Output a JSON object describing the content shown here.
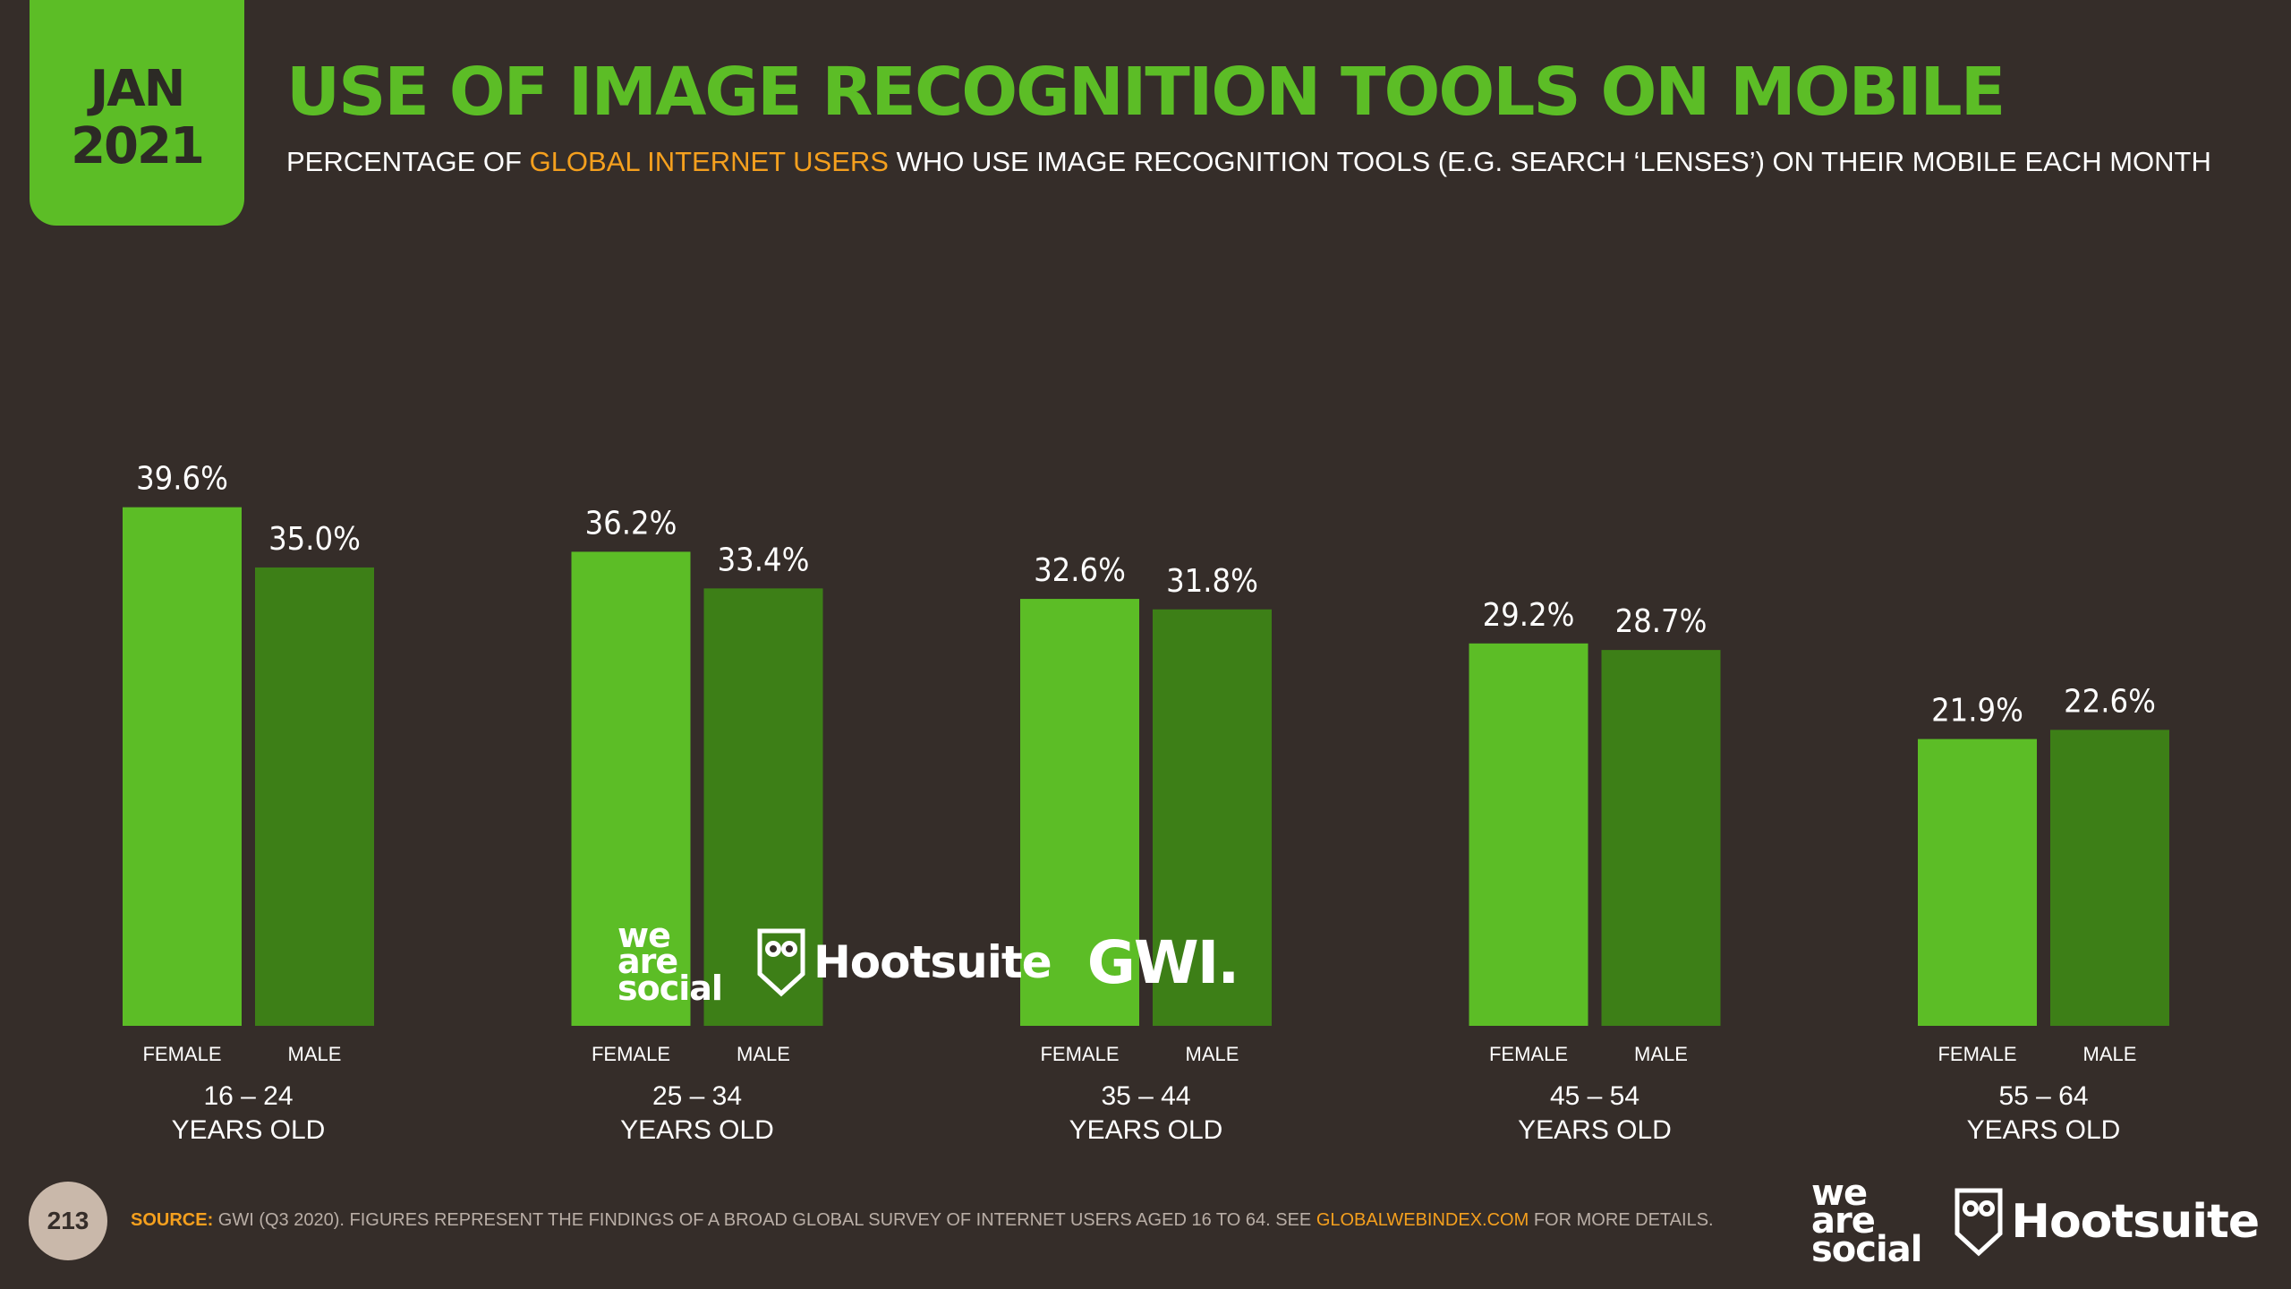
{
  "badge": {
    "month": "JAN",
    "year": "2021"
  },
  "title": "USE OF IMAGE RECOGNITION TOOLS ON MOBILE",
  "subtitle": {
    "part1": "PERCENTAGE OF ",
    "highlight": "GLOBAL INTERNET USERS",
    "part2": " WHO USE IMAGE RECOGNITION TOOLS (E.G. SEARCH ‘LENSES’) ON THEIR MOBILE EACH MONTH"
  },
  "colors": {
    "female": "#5cbd26",
    "male": "#3d7f17",
    "background": "#352d29",
    "accent": "#f5a01e"
  },
  "chart_data": {
    "type": "bar",
    "categories": [
      "16 – 24",
      "25 – 34",
      "35 – 44",
      "45 – 54",
      "55 – 64"
    ],
    "category_sublabel": "YEARS OLD",
    "series": [
      {
        "name": "FEMALE",
        "values": [
          39.6,
          36.2,
          32.6,
          29.2,
          21.9
        ],
        "color": "#5cbd26"
      },
      {
        "name": "MALE",
        "values": [
          35.0,
          33.4,
          31.8,
          28.7,
          22.6
        ],
        "color": "#3d7f17"
      }
    ],
    "value_suffix": "%",
    "ylim": [
      0,
      40
    ],
    "grid": false
  },
  "logos": {
    "was": [
      "we",
      "are",
      "social"
    ],
    "hootsuite": "Hootsuite",
    "gwi": "GWI."
  },
  "footer": {
    "page_number": "213",
    "source_label": "SOURCE:",
    "source_text": " GWI (Q3 2020). FIGURES REPRESENT THE FINDINGS OF A BROAD GLOBAL SURVEY OF INTERNET USERS AGED 16 TO 64. SEE ",
    "source_link": "GLOBALWEBINDEX.COM",
    "source_end": " FOR MORE DETAILS."
  }
}
